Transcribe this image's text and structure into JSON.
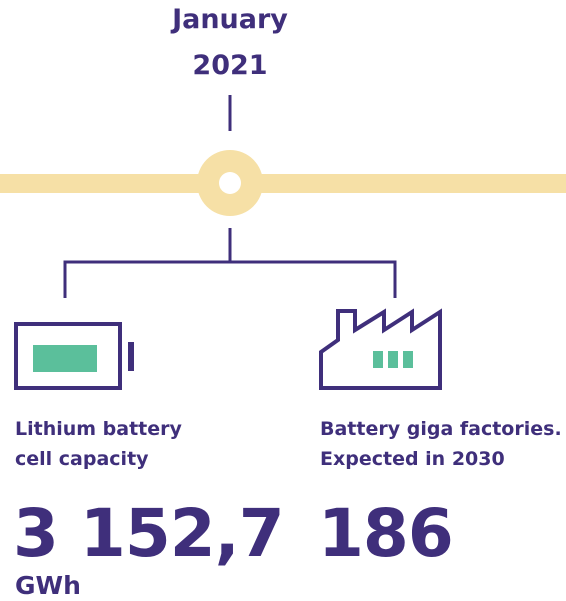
{
  "header": {
    "title_lines": [
      "January",
      "2021"
    ]
  },
  "items": [
    {
      "label_lines": [
        "Lithium battery",
        "cell capacity"
      ],
      "value": "3 152,7",
      "unit": "GWh"
    },
    {
      "label_lines": [
        "Battery giga factories.",
        "Expected in 2030"
      ],
      "value": 186
    }
  ]
}
